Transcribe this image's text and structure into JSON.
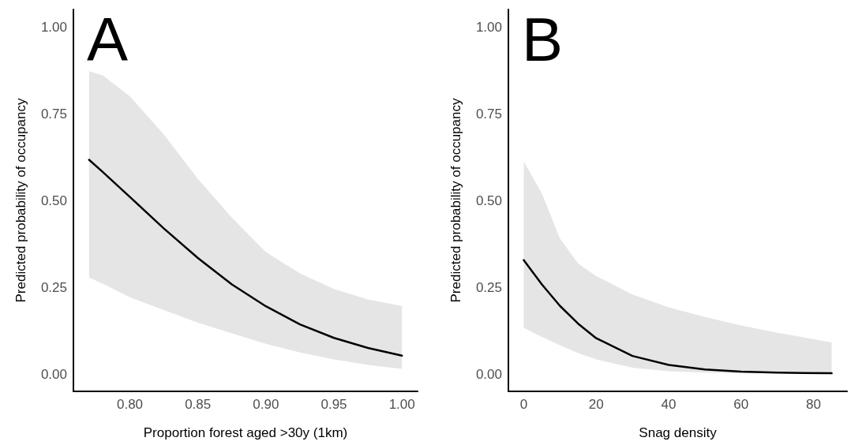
{
  "chart_data": [
    {
      "type": "line",
      "title": "A",
      "xlabel": "Proportion forest aged >30y (1km)",
      "ylabel": "Predicted probability of occupancy",
      "xlim": [
        0.7585,
        1.0115
      ],
      "xticks": [
        {
          "value": 0.8,
          "label": "0.80"
        },
        {
          "value": 0.85,
          "label": "0.85"
        },
        {
          "value": 0.9,
          "label": "0.90"
        },
        {
          "value": 0.95,
          "label": "0.95"
        },
        {
          "value": 1.0,
          "label": "1.00"
        }
      ],
      "ylim": [
        -0.05,
        1.05
      ],
      "yticks": [
        {
          "value": 0,
          "label": "0.00"
        },
        {
          "value": 0.25,
          "label": "0.25"
        },
        {
          "value": 0.5,
          "label": "0.50"
        },
        {
          "value": 0.75,
          "label": "0.75"
        },
        {
          "value": 1,
          "label": "1.00"
        }
      ],
      "grid": false,
      "marker": "none",
      "line_style": "solid",
      "series": [
        {
          "color": "#000000",
          "x": [
            0.77,
            0.78,
            0.8,
            0.825,
            0.85,
            0.875,
            0.9,
            0.925,
            0.95,
            0.975,
            1.0
          ],
          "values": [
            0.617,
            0.582,
            0.51,
            0.419,
            0.334,
            0.258,
            0.195,
            0.143,
            0.104,
            0.075,
            0.053
          ],
          "upper": [
            0.872,
            0.86,
            0.8,
            0.69,
            0.562,
            0.45,
            0.351,
            0.29,
            0.245,
            0.215,
            0.196
          ],
          "lower": [
            0.278,
            0.26,
            0.221,
            0.184,
            0.148,
            0.117,
            0.087,
            0.062,
            0.042,
            0.026,
            0.015
          ]
        }
      ]
    },
    {
      "type": "line",
      "title": "B",
      "xlabel": "Snag density",
      "ylabel": "Predicted probability of occupancy",
      "xlim": [
        -4.25,
        89.25
      ],
      "xticks": [
        0,
        20,
        40,
        60,
        80
      ],
      "ylim": [
        -0.05,
        1.05
      ],
      "yticks": [
        {
          "value": 0,
          "label": "0.00"
        },
        {
          "value": 0.25,
          "label": "0.25"
        },
        {
          "value": 0.5,
          "label": "0.50"
        },
        {
          "value": 0.75,
          "label": "0.75"
        },
        {
          "value": 1,
          "label": "1.00"
        }
      ],
      "grid": false,
      "marker": "none",
      "line_style": "solid",
      "series": [
        {
          "color": "#000000",
          "x": [
            0,
            5,
            10,
            15,
            20,
            30,
            40,
            50,
            60,
            70,
            85
          ],
          "values": [
            0.328,
            0.258,
            0.196,
            0.145,
            0.103,
            0.052,
            0.026,
            0.013,
            0.007,
            0.004,
            0.002
          ],
          "upper": [
            0.612,
            0.52,
            0.39,
            0.318,
            0.282,
            0.229,
            0.192,
            0.164,
            0.14,
            0.119,
            0.091
          ],
          "lower": [
            0.133,
            0.107,
            0.083,
            0.06,
            0.042,
            0.018,
            0.008,
            0.004,
            0.002,
            0.002,
            0.001
          ]
        }
      ]
    }
  ]
}
